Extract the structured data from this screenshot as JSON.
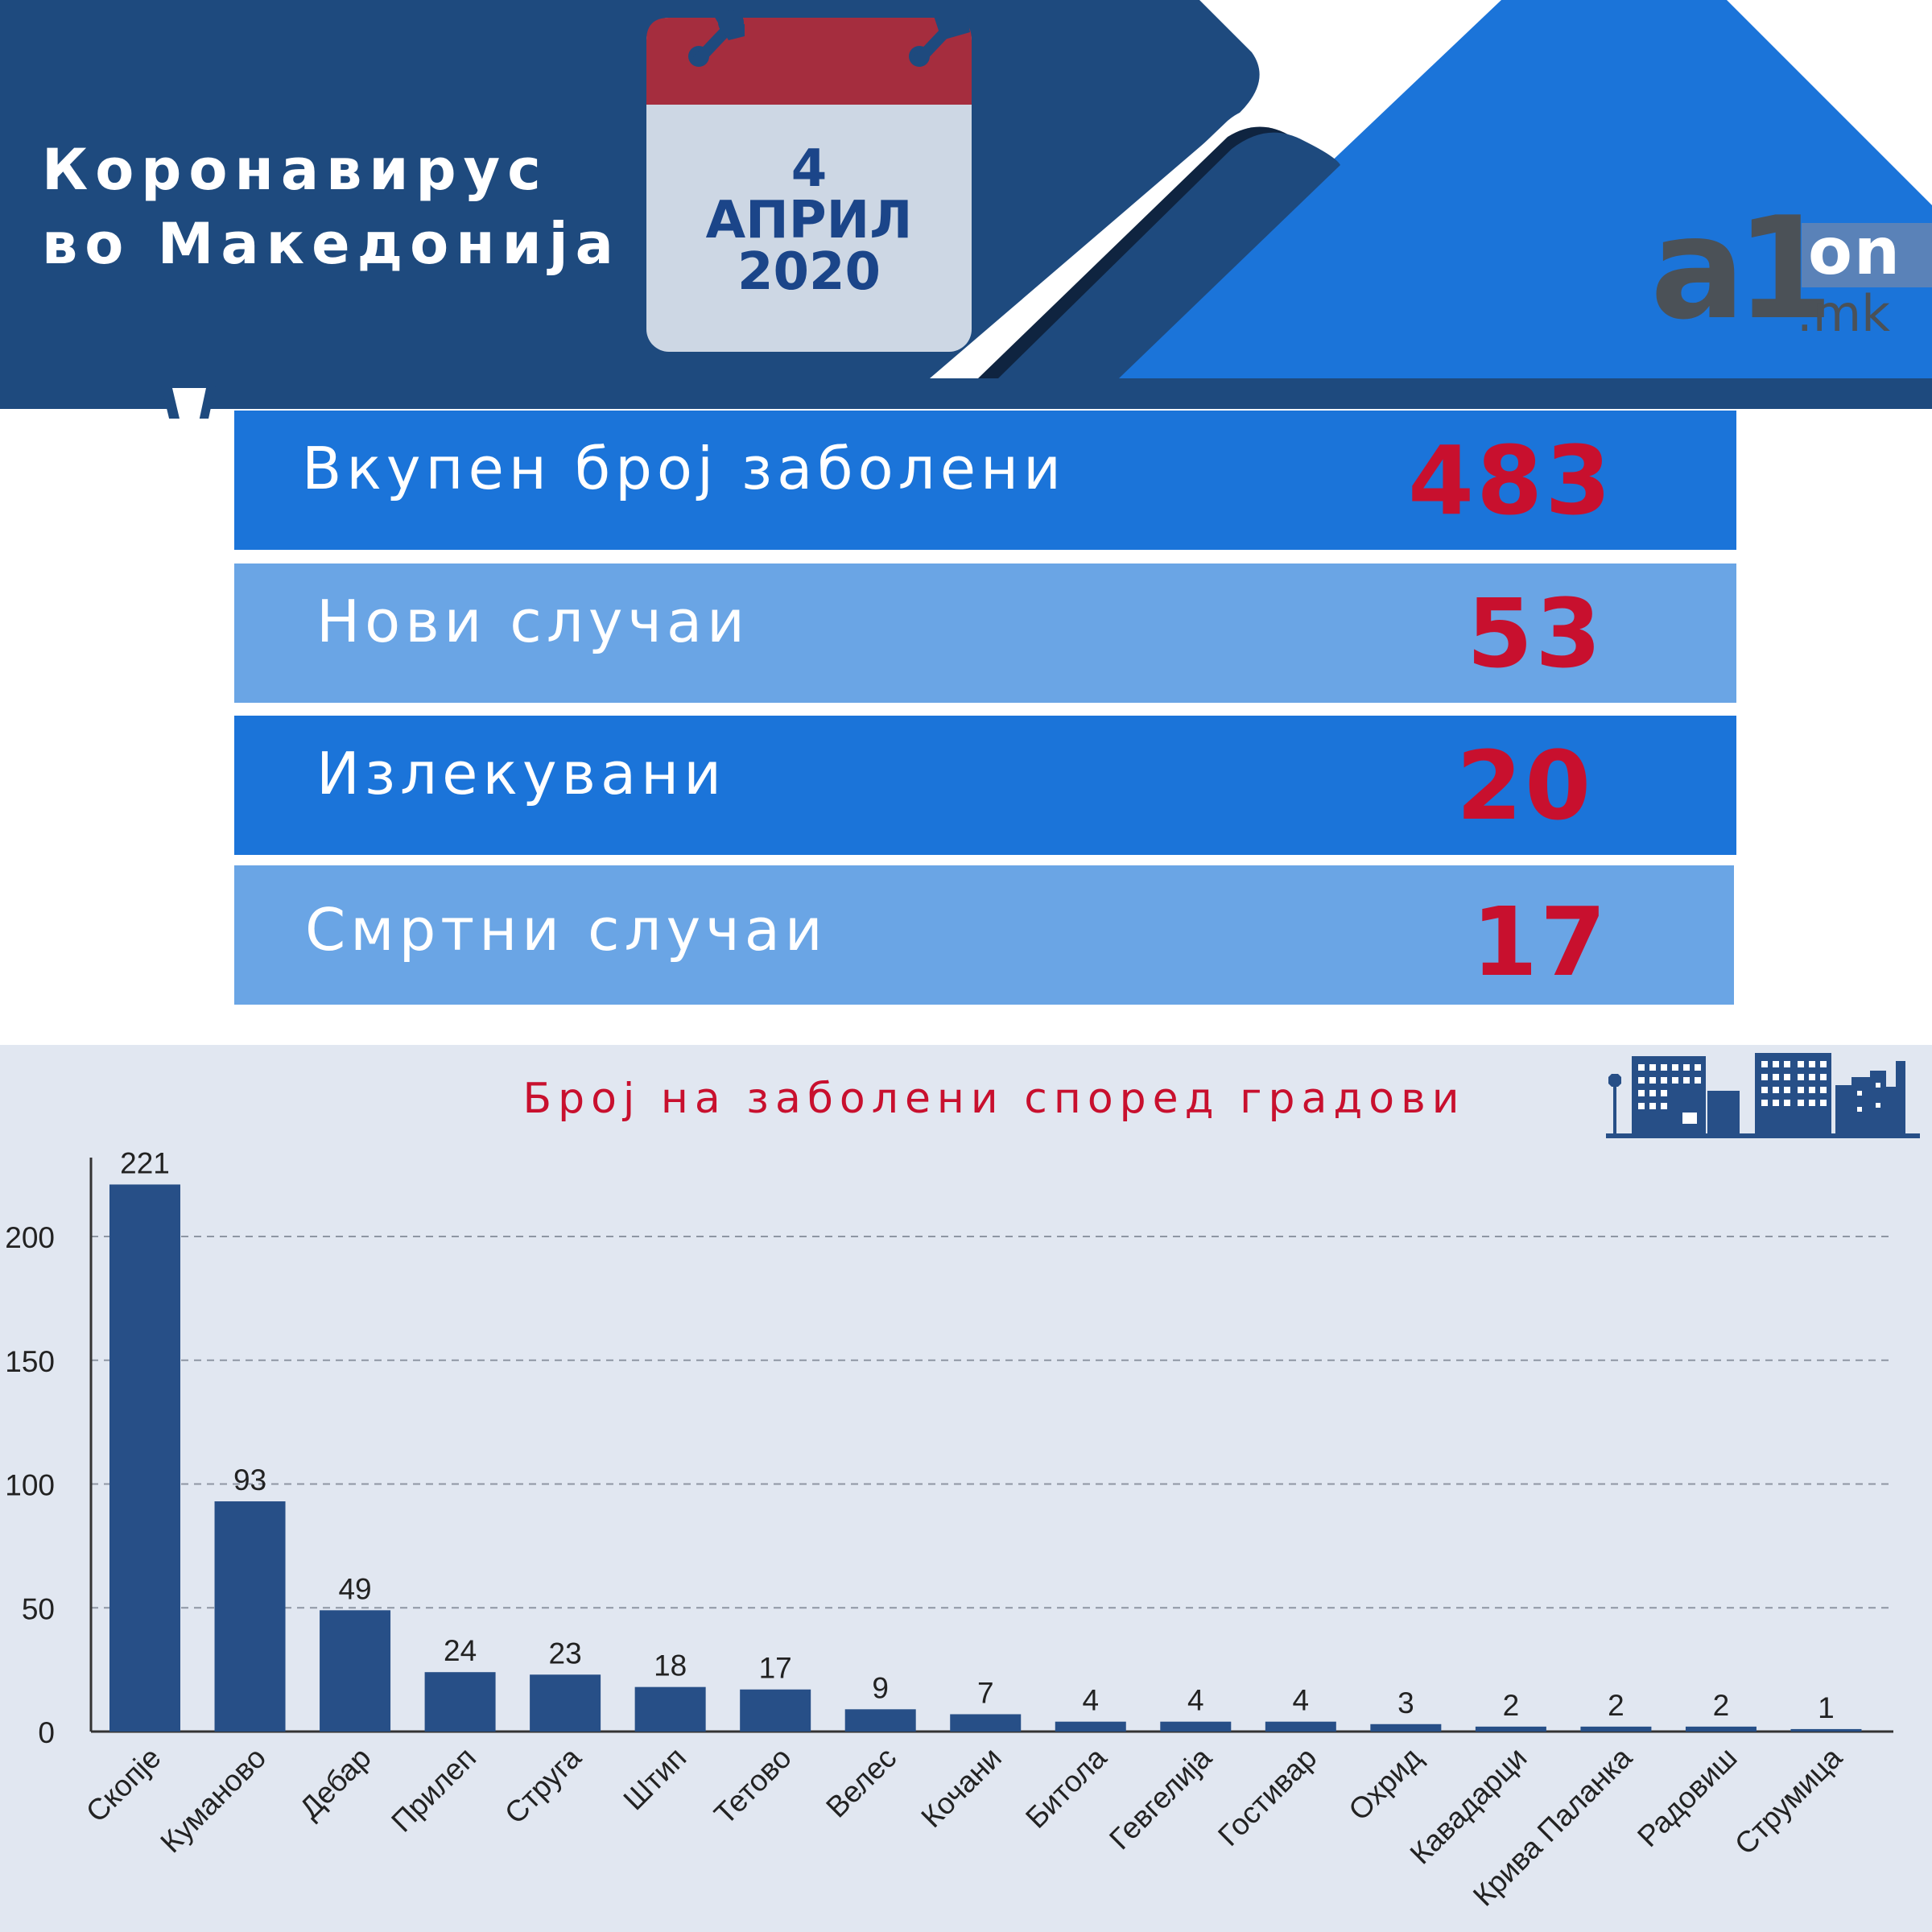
{
  "header": {
    "title_line1": "Коронавирус",
    "title_line2": "во Македонија",
    "date_day": "4",
    "date_month": "АПРИЛ",
    "date_year": "2020",
    "logo_main": "a1",
    "logo_on": "on",
    "logo_domain": ".mk"
  },
  "stats": [
    {
      "label": "Вкупен број заболени",
      "value": "483"
    },
    {
      "label": "Нови случаи",
      "value": "53"
    },
    {
      "label": "Излекувани",
      "value": "20"
    },
    {
      "label": "Смртни случаи",
      "value": "17"
    }
  ],
  "colors": {
    "navy": "#1e4a7e",
    "blue": "#1b74d9",
    "light_blue": "#6aa5e5",
    "red": "#c8102e",
    "bar": "#274f87",
    "chart_bg": "#e1e7f1",
    "calendar_top": "#a52d3e",
    "calendar_body": "#cdd7e4"
  },
  "icons": [
    "calendar-icon",
    "pushpin-icon",
    "city-skyline-icon",
    "stop-sign-icon"
  ],
  "chart_data": {
    "type": "bar",
    "title": "Број на заболени според градови",
    "categories": [
      "Скопје",
      "Куманово",
      "Дебар",
      "Прилеп",
      "Струга",
      "Штип",
      "Тетово",
      "Велес",
      "Кочани",
      "Битола",
      "Гевгелија",
      "Гостивар",
      "Охрид",
      "Кавадарци",
      "Крива Паланка",
      "Радовиш",
      "Струмица"
    ],
    "values": [
      221,
      93,
      49,
      24,
      23,
      18,
      17,
      9,
      7,
      4,
      4,
      4,
      3,
      2,
      2,
      2,
      1
    ],
    "yticks": [
      0,
      50,
      100,
      150,
      200
    ],
    "ylim": [
      0,
      230
    ],
    "grid": "horizontal dashed",
    "xlabel": "",
    "ylabel": ""
  }
}
